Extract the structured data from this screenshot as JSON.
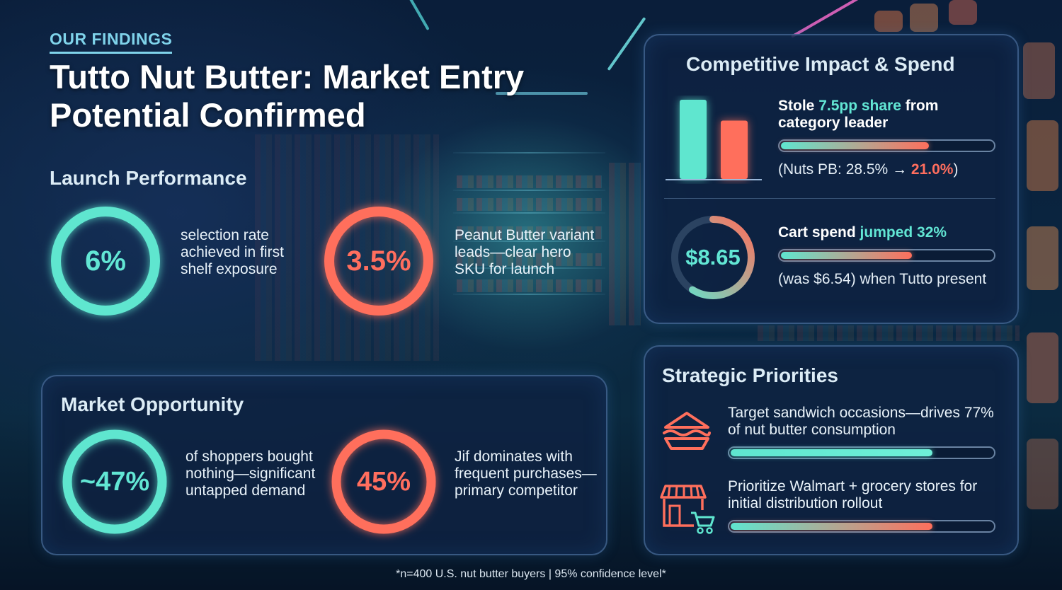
{
  "header": {
    "eyebrow": "OUR FINDINGS",
    "title": "Tutto Nut Butter: Market Entry Potential Confirmed"
  },
  "launch_performance": {
    "heading": "Launch Performance",
    "metrics": [
      {
        "value": "6%",
        "description": "selection rate achieved in first shelf exposure",
        "color": "#5fe6cf",
        "ring_fill_fraction": 1.0
      },
      {
        "value": "3.5%",
        "description": "Peanut Butter variant leads—clear hero SKU for launch",
        "color": "#ff6f5c",
        "ring_fill_fraction": 1.0
      }
    ]
  },
  "market_opportunity": {
    "heading": "Market Opportunity",
    "metrics": [
      {
        "value": "~47%",
        "description": "of shoppers bought nothing—significant untapped demand",
        "color": "#5fe6cf",
        "ring_fill_fraction": 1.0
      },
      {
        "value": "45%",
        "description": "Jif dominates with frequent purchases—primary competitor",
        "color": "#ff6f5c",
        "ring_fill_fraction": 1.0
      }
    ]
  },
  "competitive_impact": {
    "heading": "Competitive Impact & Spend",
    "share": {
      "head_prefix": "Stole ",
      "head_highlight": "7.5pp share",
      "head_suffix_line1": " from",
      "head_line2": "category leader",
      "sub_prefix": "(Nuts PB: 28.5% → ",
      "sub_highlight": "21.0%",
      "sub_suffix": ")",
      "bar_fill_fraction": 0.7,
      "bars": [
        {
          "value": 28.5,
          "color": "#5fe6cf"
        },
        {
          "value": 21.0,
          "color": "#ff6f5c"
        }
      ]
    },
    "spend": {
      "value": "$8.65",
      "head_prefix": "Cart spend ",
      "head_highlight": "jumped 32%",
      "sub": "(was $6.54) when Tutto present",
      "bar_fill_fraction": 0.62
    }
  },
  "strategic_priorities": {
    "heading": "Strategic Priorities",
    "items": [
      {
        "icon": "sandwich-icon",
        "text_line1": "Target sandwich occasions—drives 77%",
        "text_line2": "of nut butter consumption",
        "bar_fill_fraction": 0.77
      },
      {
        "icon": "storefront-cart-icon",
        "text_line1": "Prioritize Walmart + grocery stores for",
        "text_line2": "initial distribution rollout",
        "bar_fill_fraction": 0.77
      }
    ]
  },
  "footnote": "*n=400 U.S. nut butter buyers | 95% confidence level*",
  "colors": {
    "teal": "#5fe6cf",
    "coral": "#ff6f5c",
    "heading": "#dcecf6",
    "eyebrow": "#7fd3ea"
  }
}
